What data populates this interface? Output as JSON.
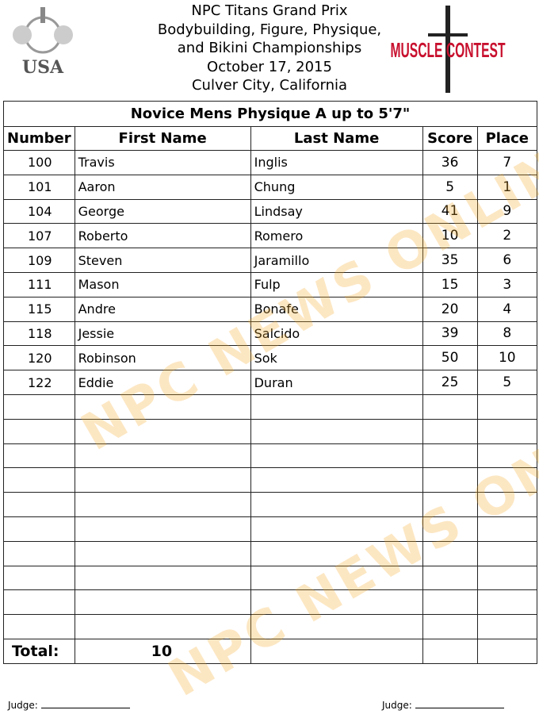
{
  "header": {
    "lines": [
      "NPC Titans Grand Prix",
      "Bodybuilding, Figure, Physique,",
      "and Bikini Championships",
      "October 17, 2015",
      "Culver City, California"
    ]
  },
  "logos": {
    "left": "USA Physique",
    "right": "MUSCLE CONTEST"
  },
  "watermark": "NPC NEWS ONLINE",
  "table": {
    "title": "Novice Mens Physique A up to 5'7\"",
    "columns": [
      "Number",
      "First Name",
      "Last Name",
      "Score",
      "Place"
    ],
    "rows": [
      [
        "100",
        "Travis",
        "Inglis",
        "36",
        "7"
      ],
      [
        "101",
        "Aaron",
        "Chung",
        "5",
        "1"
      ],
      [
        "104",
        "George",
        "Lindsay",
        "41",
        "9"
      ],
      [
        "107",
        "Roberto",
        "Romero",
        "10",
        "2"
      ],
      [
        "109",
        "Steven",
        "Jaramillo",
        "35",
        "6"
      ],
      [
        "111",
        "Mason",
        "Fulp",
        "15",
        "3"
      ],
      [
        "115",
        "Andre",
        "Bonafe",
        "20",
        "4"
      ],
      [
        "118",
        "Jessie",
        "Salcido",
        "39",
        "8"
      ],
      [
        "120",
        "Robinson",
        "Sok",
        "50",
        "10"
      ],
      [
        "122",
        "Eddie",
        "Duran",
        "25",
        "5"
      ]
    ],
    "empty_rows": 10,
    "total_label": "Total:",
    "total_value": "10"
  },
  "footer": {
    "judge_label": "Judge:"
  }
}
